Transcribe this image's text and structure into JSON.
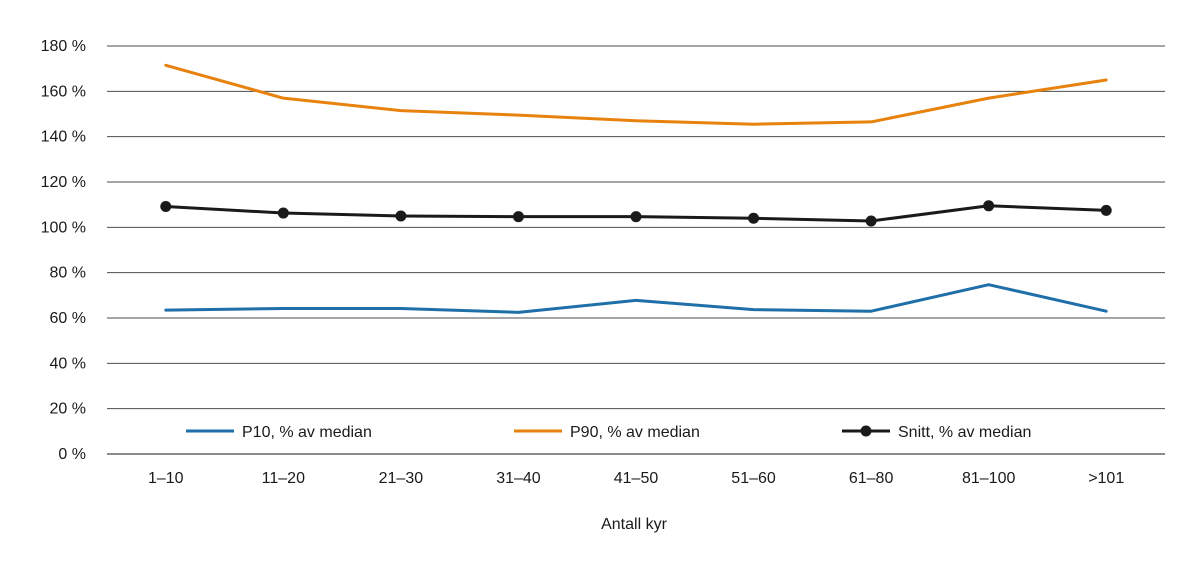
{
  "chart_data": {
    "type": "line",
    "title": "",
    "xlabel": "Antall kyr",
    "ylabel": "",
    "categories": [
      "1–10",
      "11–20",
      "21–30",
      "31–40",
      "41–50",
      "51–60",
      "61–80",
      "81–100",
      ">101"
    ],
    "ylim": [
      0,
      180
    ],
    "ytick_values": [
      0,
      20,
      40,
      60,
      80,
      100,
      120,
      140,
      160,
      180
    ],
    "ytick_labels": [
      "0 %",
      "20 %",
      "40 %",
      "60 %",
      "80 %",
      "100 %",
      "120 %",
      "140 %",
      "160 %",
      "180 %"
    ],
    "grid": true,
    "legend_position": "bottom-inside",
    "series": [
      {
        "name": "P10, % av median",
        "color": "#1f6fa8",
        "marker": "none",
        "values": [
          63.5,
          64.2,
          64.2,
          62.5,
          67.8,
          63.7,
          63.0,
          74.7,
          63.0
        ]
      },
      {
        "name": "P90, % av median",
        "color": "#e8820e",
        "marker": "none",
        "values": [
          171.5,
          157.0,
          151.5,
          149.5,
          147.0,
          145.5,
          146.5,
          157.0,
          165.0
        ]
      },
      {
        "name": "Snitt, % av median",
        "color": "#1a1a1a",
        "marker": "circle",
        "values": [
          109.2,
          106.3,
          105.0,
          104.7,
          104.7,
          104.0,
          102.8,
          109.5,
          107.5
        ]
      }
    ]
  }
}
